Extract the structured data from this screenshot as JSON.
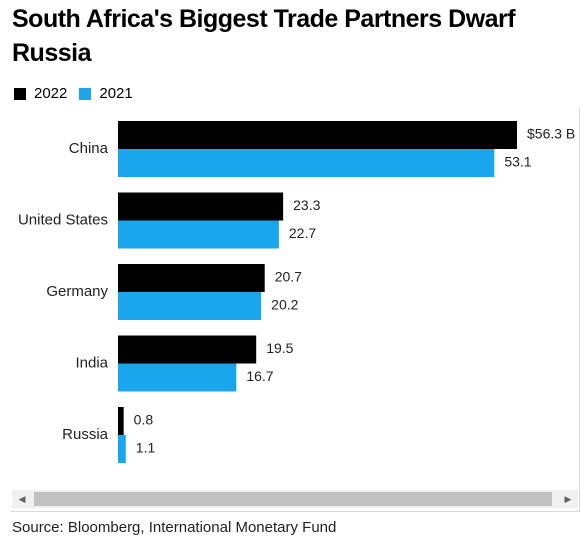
{
  "title": "South Africa's Biggest Trade Partners Dwarf Russia",
  "source": "Source: Bloomberg, International Monetary Fund",
  "legend": [
    {
      "label": "2022",
      "color": "#000000"
    },
    {
      "label": "2021",
      "color": "#1aa6ec"
    }
  ],
  "scrollbar": {
    "left_icon": "scroll-left-arrow",
    "right_icon": "scroll-right-arrow"
  },
  "chart_data": {
    "type": "bar",
    "orientation": "horizontal",
    "categories": [
      "China",
      "United States",
      "Germany",
      "India",
      "Russia"
    ],
    "series": [
      {
        "name": "2022",
        "color": "#000000",
        "values": [
          56.3,
          23.3,
          20.7,
          19.5,
          0.8
        ],
        "labels": [
          "$56.3 B",
          "23.3",
          "20.7",
          "19.5",
          "0.8"
        ]
      },
      {
        "name": "2021",
        "color": "#1aa6ec",
        "values": [
          53.1,
          22.7,
          20.2,
          16.7,
          1.1
        ],
        "labels": [
          "53.1",
          "22.7",
          "20.2",
          "16.7",
          "1.1"
        ]
      }
    ],
    "xlim": [
      0,
      56.3
    ],
    "grid": false,
    "legend_position": "top-left"
  }
}
